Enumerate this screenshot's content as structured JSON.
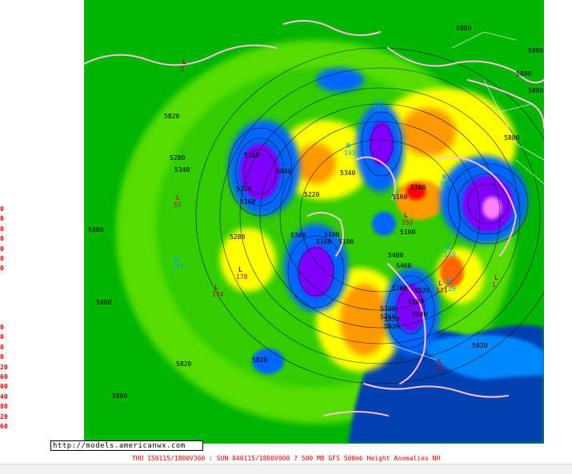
{
  "source_url": "http://models.americanwx.com",
  "caption": "THU 150115/1800V360 : SUN 840115/1800V000  ? 500 MB GFS 500mb Height Anomalies NH",
  "legend_upper": [
    "0",
    "0",
    "0",
    "0",
    "0",
    "0",
    "0"
  ],
  "legend_lower": [
    "0",
    "0",
    "0",
    "0",
    "20",
    "60",
    "00",
    "40",
    "80",
    "20",
    "60"
  ],
  "colors": {
    "land_bg": "#00b400",
    "ocean_bg": "#0000a0",
    "high_anom_yellow": "#ffff00",
    "high_anom_orange": "#ff9900",
    "high_anom_red": "#ff0000",
    "low_anom_blue": "#0066ff",
    "low_anom_purple": "#8000ff",
    "coastline": "#ffc0d8",
    "contour": "#000000"
  },
  "contour_labels": [
    {
      "text": "5880"
    },
    {
      "text": "5880"
    },
    {
      "text": "5880"
    },
    {
      "text": "5880"
    },
    {
      "text": "5880"
    },
    {
      "text": "5880"
    },
    {
      "text": "5880"
    },
    {
      "text": "5820"
    },
    {
      "text": "5820"
    },
    {
      "text": "5820"
    },
    {
      "text": "5760"
    },
    {
      "text": "5700"
    },
    {
      "text": "5640"
    },
    {
      "text": "5580"
    },
    {
      "text": "5520"
    },
    {
      "text": "5460"
    },
    {
      "text": "5400"
    },
    {
      "text": "5340"
    },
    {
      "text": "5340"
    },
    {
      "text": "5280"
    },
    {
      "text": "5220"
    },
    {
      "text": "5220"
    },
    {
      "text": "5160"
    },
    {
      "text": "5160"
    },
    {
      "text": "5160"
    },
    {
      "text": "5100"
    },
    {
      "text": "5100"
    },
    {
      "text": "5040"
    },
    {
      "text": "5100"
    },
    {
      "text": "5160"
    },
    {
      "text": "5820"
    },
    {
      "text": "5760"
    },
    {
      "text": "5100"
    },
    {
      "text": "5340"
    },
    {
      "text": "5280"
    },
    {
      "text": "5820"
    },
    {
      "text": "5820"
    },
    {
      "text": "5880"
    }
  ],
  "pressure_centers": [
    {
      "letter": "H",
      "value": "101",
      "kind": "high"
    },
    {
      "letter": "H",
      "value": "119",
      "kind": "high"
    },
    {
      "letter": "H",
      "value": "129",
      "kind": "high"
    },
    {
      "letter": "H",
      "value": "176",
      "kind": "high"
    },
    {
      "letter": "H",
      "value": "159",
      "kind": "high"
    },
    {
      "letter": "H",
      "value": "143",
      "kind": "high"
    },
    {
      "letter": "L",
      "value": "174",
      "kind": "low"
    },
    {
      "letter": "L",
      "value": "178",
      "kind": "low"
    },
    {
      "letter": "L",
      "value": "352",
      "kind": "low"
    },
    {
      "letter": "L",
      "value": "131",
      "kind": "low"
    },
    {
      "letter": "L",
      "value": "52",
      "kind": "low"
    },
    {
      "letter": "L",
      "value": "57",
      "kind": "low"
    },
    {
      "letter": "L",
      "value": "1",
      "kind": "low"
    },
    {
      "letter": "L",
      "value": "3",
      "kind": "low"
    }
  ]
}
